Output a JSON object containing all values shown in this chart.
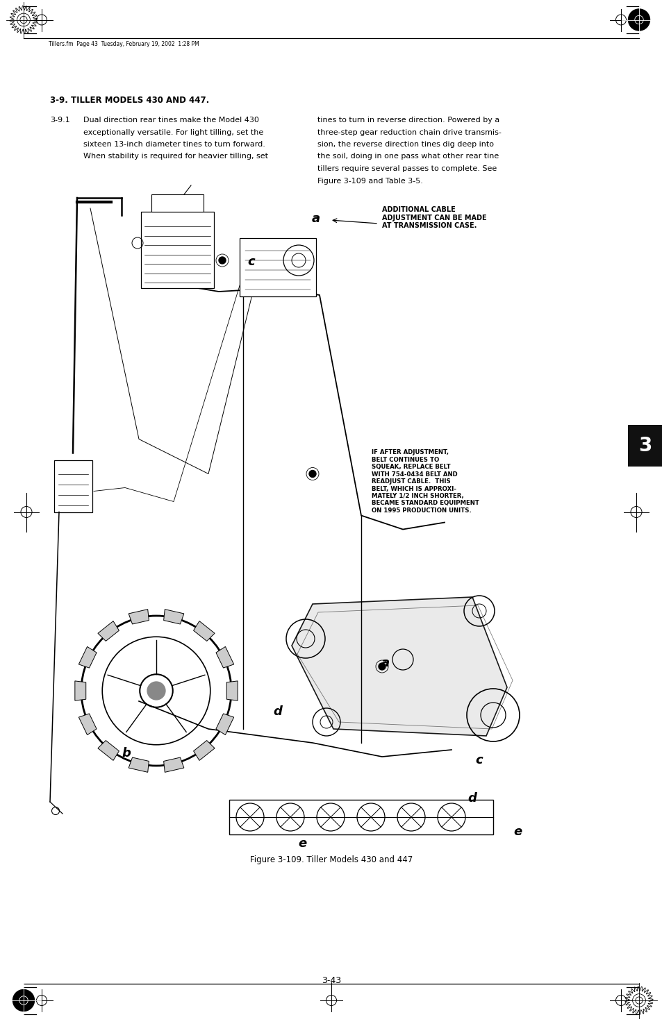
{
  "page_bg": "#ffffff",
  "page_width": 9.54,
  "page_height": 14.75,
  "dpi": 100,
  "header_text": "Tillers.fm  Page 43  Tuesday, February 19, 2002  1:28 PM",
  "section_title": "3-9. TILLER MODELS 430 AND 447.",
  "section_num": "3-9.1",
  "left_body_text": [
    "Dual direction rear tines make the Model 430",
    "exceptionally versatile. For light tilling, set the",
    "sixteen 13-inch diameter tines to turn forward.",
    "When stability is required for heavier tilling, set"
  ],
  "right_body_text": [
    "tines to turn in reverse direction. Powered by a",
    "three-step gear reduction chain drive transmis-",
    "sion, the reverse direction tines dig deep into",
    "the soil, doing in one pass what other rear tine",
    "tillers require several passes to complete. See",
    "Figure 3-109 and Table 3-5."
  ],
  "figure_caption": "Figure 3-109. Tiller Models 430 and 447",
  "page_number": "3-43",
  "tab_label": "3",
  "callout_1_text": "ADDITIONAL CABLE\nADJUSTMENT CAN BE MADE\nAT TRANSMISSION CASE.",
  "callout_2_text": "IF AFTER ADJUSTMENT,\nBELT CONTINUES TO\nSQUEAK, REPLACE BELT\nWITH 754-0434 BELT AND\nREADJUST CABLE.  THIS\nBELT, WHICH IS APPROXI-\nMATELY 1/2 INCH SHORTER,\nBECAME STANDARD EQUIPMENT\nON 1995 PRODUCTION UNITS.",
  "text_color": "#000000"
}
